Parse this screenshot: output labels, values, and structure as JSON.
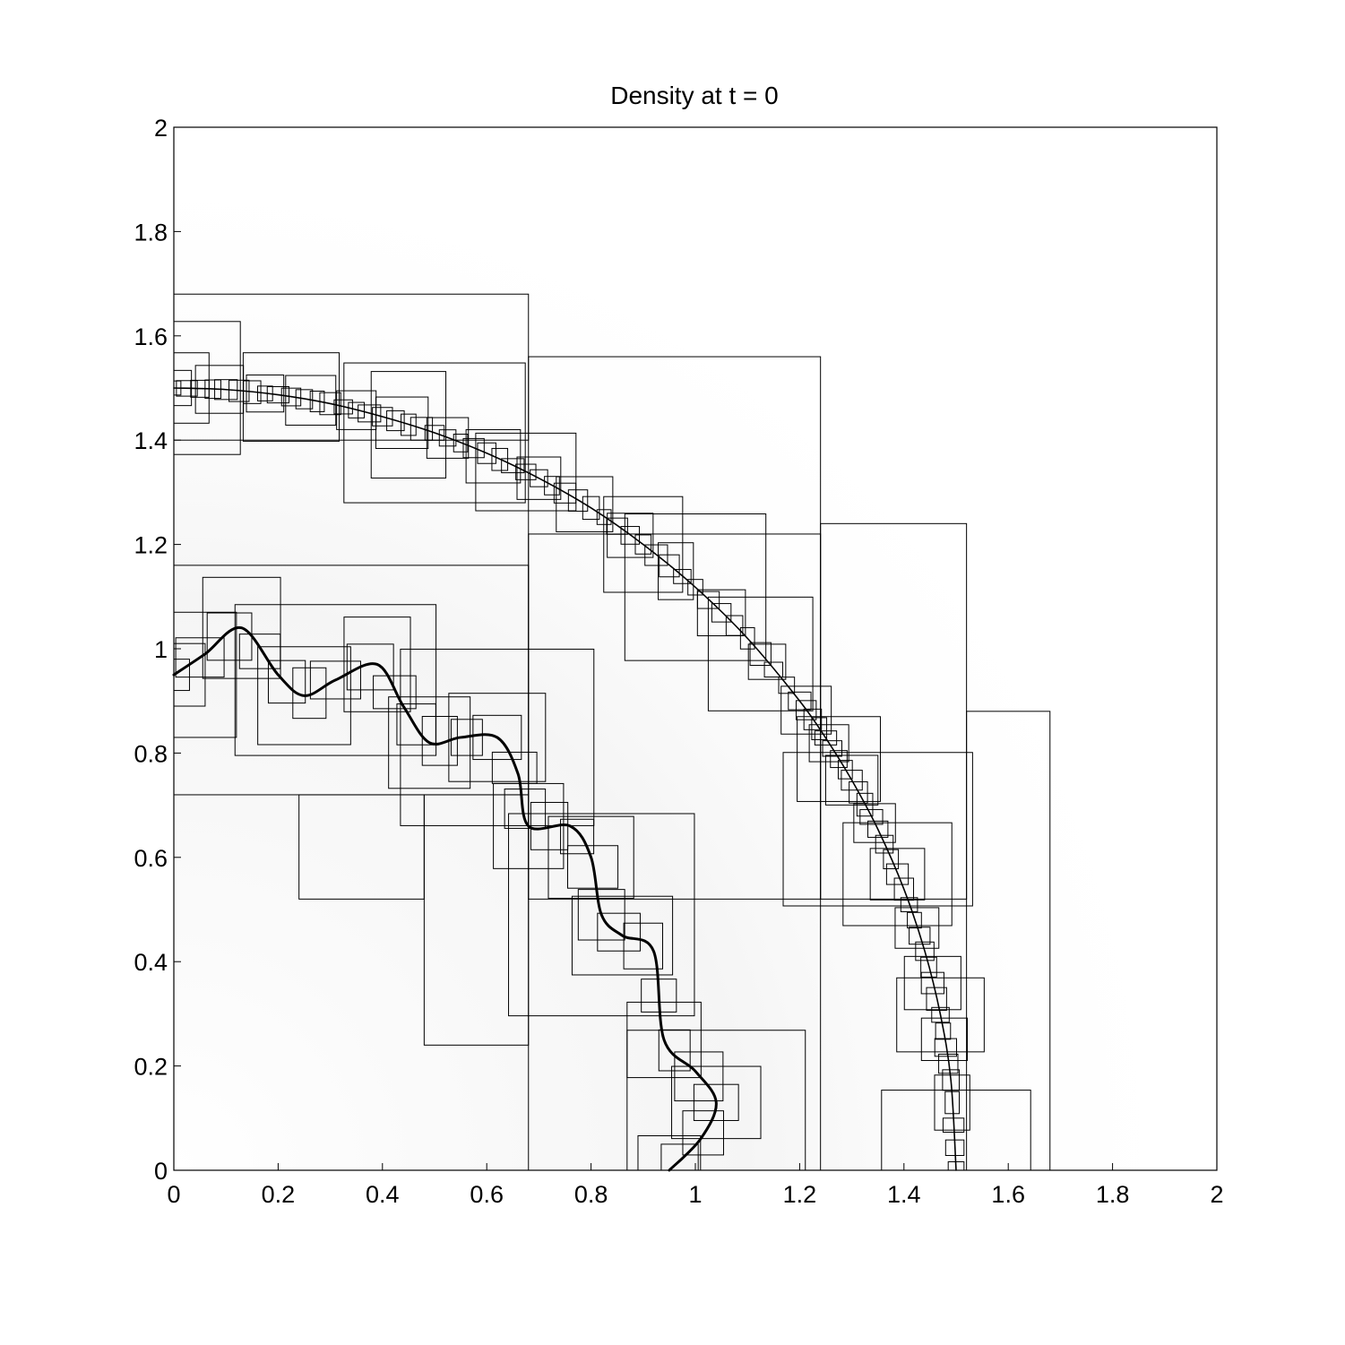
{
  "chart_data": {
    "type": "line",
    "title": "Density at t = 0",
    "xlabel": "",
    "ylabel": "",
    "xlim": [
      0,
      2
    ],
    "ylim": [
      0,
      2
    ],
    "xticks": [
      "0",
      "0.2",
      "0.4",
      "0.6",
      "0.8",
      "1",
      "1.2",
      "1.4",
      "1.6",
      "1.8",
      "2"
    ],
    "yticks": [
      "0",
      "0.2",
      "0.4",
      "0.6",
      "0.8",
      "1",
      "1.2",
      "1.4",
      "1.6",
      "1.8",
      "2"
    ],
    "grid": false,
    "legend": "none",
    "series": [
      {
        "style": "thin",
        "color": "#000000",
        "x": [
          0,
          0.1,
          0.2,
          0.3,
          0.4,
          0.5,
          0.6,
          0.7,
          0.8,
          0.9,
          1.0,
          1.1,
          1.2,
          1.25,
          1.3,
          1.35,
          1.4,
          1.44,
          1.47,
          1.49,
          1.5
        ],
        "y": [
          1.5,
          1.497,
          1.487,
          1.47,
          1.445,
          1.414,
          1.375,
          1.327,
          1.27,
          1.2,
          1.118,
          1.02,
          0.9,
          0.829,
          0.748,
          0.654,
          0.539,
          0.42,
          0.298,
          0.173,
          0
        ]
      },
      {
        "style": "thick",
        "color": "#000000",
        "x": [
          0,
          0.06,
          0.13,
          0.2,
          0.25,
          0.31,
          0.39,
          0.44,
          0.49,
          0.55,
          0.62,
          0.66,
          0.68,
          0.76,
          0.8,
          0.82,
          0.86,
          0.92,
          0.94,
          1.0,
          1.04,
          1.01,
          0.95
        ],
        "y": [
          0.95,
          0.99,
          1.04,
          0.95,
          0.91,
          0.94,
          0.97,
          0.89,
          0.82,
          0.83,
          0.83,
          0.76,
          0.66,
          0.66,
          0.6,
          0.49,
          0.45,
          0.42,
          0.25,
          0.19,
          0.13,
          0.06,
          0
        ]
      }
    ]
  }
}
